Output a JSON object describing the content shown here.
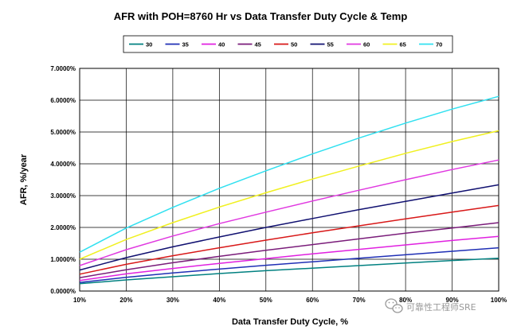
{
  "chart_data": {
    "type": "line",
    "title": "AFR with POH=8760 Hr vs Data Transfer Duty Cycle & Temp",
    "xlabel": "Data Transfer Duty Cycle, %",
    "ylabel": "AFR, %/year",
    "x": [
      10,
      20,
      30,
      40,
      50,
      60,
      70,
      80,
      90,
      100
    ],
    "x_tick_labels": [
      "10%",
      "20%",
      "30%",
      "40%",
      "50%",
      "60%",
      "70%",
      "80%",
      "90%",
      "100%"
    ],
    "xlim": [
      10,
      100
    ],
    "ylim": [
      0,
      7
    ],
    "y_ticks": [
      0,
      1,
      2,
      3,
      4,
      5,
      6,
      7
    ],
    "y_tick_labels": [
      "0.0000%",
      "1.0000%",
      "2.0000%",
      "3.0000%",
      "4.0000%",
      "5.0000%",
      "6.0000%",
      "7.0000%"
    ],
    "grid": true,
    "legend_position": "top",
    "series": [
      {
        "name": "30",
        "color": "#008080",
        "values": [
          0.23,
          0.35,
          0.45,
          0.55,
          0.64,
          0.72,
          0.8,
          0.88,
          0.96,
          1.03
        ]
      },
      {
        "name": "35",
        "color": "#1f2fb5",
        "values": [
          0.27,
          0.43,
          0.57,
          0.69,
          0.81,
          0.92,
          1.03,
          1.14,
          1.25,
          1.36
        ]
      },
      {
        "name": "40",
        "color": "#e020e0",
        "values": [
          0.33,
          0.54,
          0.71,
          0.87,
          1.02,
          1.17,
          1.31,
          1.45,
          1.59,
          1.72
        ]
      },
      {
        "name": "45",
        "color": "#7a1c7a",
        "values": [
          0.42,
          0.67,
          0.89,
          1.09,
          1.28,
          1.46,
          1.64,
          1.82,
          1.98,
          2.15
        ]
      },
      {
        "name": "50",
        "color": "#d81818",
        "values": [
          0.53,
          0.84,
          1.11,
          1.36,
          1.6,
          1.83,
          2.05,
          2.27,
          2.48,
          2.69
        ]
      },
      {
        "name": "55",
        "color": "#101070",
        "values": [
          0.66,
          1.05,
          1.39,
          1.7,
          2.0,
          2.28,
          2.56,
          2.82,
          3.08,
          3.34
        ]
      },
      {
        "name": "60",
        "color": "#e038e0",
        "values": [
          0.8,
          1.3,
          1.73,
          2.12,
          2.48,
          2.83,
          3.17,
          3.5,
          3.82,
          4.12
        ]
      },
      {
        "name": "65",
        "color": "#f0f020",
        "values": [
          1.0,
          1.62,
          2.15,
          2.64,
          3.09,
          3.52,
          3.93,
          4.33,
          4.7,
          5.04
        ]
      },
      {
        "name": "70",
        "color": "#30e0f0",
        "values": [
          1.22,
          1.98,
          2.63,
          3.23,
          3.78,
          4.31,
          4.81,
          5.28,
          5.72,
          6.12
        ]
      }
    ]
  },
  "watermark": {
    "text": "可靠性工程师SRE",
    "icon": "wechat-icon"
  }
}
